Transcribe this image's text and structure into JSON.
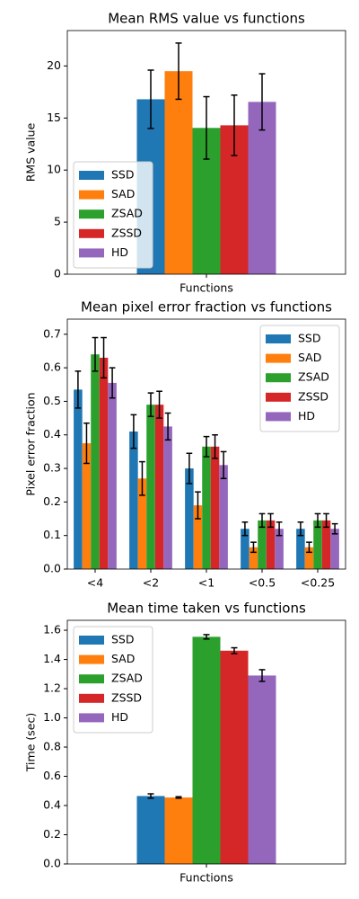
{
  "chart_data": [
    {
      "type": "bar",
      "title": "Mean RMS value vs functions",
      "y_label": "RMS value",
      "categories": [
        "Functions"
      ],
      "series": [
        {
          "name": "SSD",
          "color": "#1f77b4",
          "values": [
            16.8
          ],
          "errors": [
            2.8
          ]
        },
        {
          "name": "SAD",
          "color": "#ff7f0e",
          "values": [
            19.5
          ],
          "errors": [
            2.7
          ]
        },
        {
          "name": "ZSAD",
          "color": "#2ca02c",
          "values": [
            14.05
          ],
          "errors": [
            3.0
          ]
        },
        {
          "name": "ZSSD",
          "color": "#d62728",
          "values": [
            14.3
          ],
          "errors": [
            2.9
          ]
        },
        {
          "name": "HD",
          "color": "#9467bd",
          "values": [
            16.55
          ],
          "errors": [
            2.7
          ]
        }
      ],
      "ylim": [
        0,
        23.4
      ],
      "yticks": [
        0,
        5,
        10,
        15,
        20
      ],
      "legend": "lower left"
    },
    {
      "type": "bar",
      "title": "Mean pixel error fraction vs functions",
      "y_label": "Pixel error fraction",
      "categories": [
        "<4",
        "<2",
        "<1",
        "<0.5",
        "<0.25"
      ],
      "series": [
        {
          "name": "SSD",
          "color": "#1f77b4",
          "values": [
            0.535,
            0.41,
            0.3,
            0.12,
            0.12
          ],
          "errors": [
            0.055,
            0.05,
            0.045,
            0.02,
            0.02
          ]
        },
        {
          "name": "SAD",
          "color": "#ff7f0e",
          "values": [
            0.375,
            0.27,
            0.19,
            0.065,
            0.065
          ],
          "errors": [
            0.06,
            0.05,
            0.04,
            0.015,
            0.015
          ]
        },
        {
          "name": "ZSAD",
          "color": "#2ca02c",
          "values": [
            0.64,
            0.49,
            0.365,
            0.145,
            0.145
          ],
          "errors": [
            0.05,
            0.035,
            0.03,
            0.02,
            0.02
          ]
        },
        {
          "name": "ZSSD",
          "color": "#d62728",
          "values": [
            0.63,
            0.49,
            0.365,
            0.145,
            0.145
          ],
          "errors": [
            0.06,
            0.04,
            0.035,
            0.02,
            0.02
          ]
        },
        {
          "name": "HD",
          "color": "#9467bd",
          "values": [
            0.555,
            0.425,
            0.31,
            0.12,
            0.12
          ],
          "errors": [
            0.045,
            0.04,
            0.04,
            0.02,
            0.015
          ]
        }
      ],
      "ylim": [
        0,
        0.745
      ],
      "yticks": [
        {
          "value": 0,
          "label": "0.0"
        },
        0.1,
        0.2,
        0.3,
        0.4,
        0.5,
        0.6,
        0.7
      ],
      "legend": "upper right"
    },
    {
      "type": "bar",
      "title": "Mean time taken vs functions",
      "y_label": "Time (sec)",
      "categories": [
        "Functions"
      ],
      "series": [
        {
          "name": "SSD",
          "color": "#1f77b4",
          "values": [
            0.465
          ],
          "errors": [
            0.015
          ]
        },
        {
          "name": "SAD",
          "color": "#ff7f0e",
          "values": [
            0.455
          ],
          "errors": [
            0.005
          ]
        },
        {
          "name": "ZSAD",
          "color": "#2ca02c",
          "values": [
            1.555
          ],
          "errors": [
            0.015
          ]
        },
        {
          "name": "ZSSD",
          "color": "#d62728",
          "values": [
            1.46
          ],
          "errors": [
            0.02
          ]
        },
        {
          "name": "HD",
          "color": "#9467bd",
          "values": [
            1.29
          ],
          "errors": [
            0.04
          ]
        }
      ],
      "ylim": [
        0,
        1.668
      ],
      "yticks": [
        {
          "value": 0,
          "label": "0.0"
        },
        0.2,
        0.4,
        0.6,
        0.8,
        {
          "value": 1,
          "label": "1.0"
        },
        1.2,
        1.4,
        1.6
      ],
      "legend": "upper left"
    }
  ]
}
